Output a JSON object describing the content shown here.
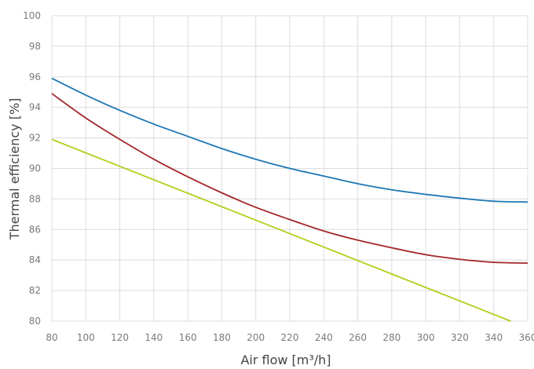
{
  "chart_data": {
    "type": "line",
    "title": "",
    "xlabel": "Air flow [m³/h]",
    "ylabel": "Thermal efficiency [%]",
    "xlim": [
      80,
      360
    ],
    "ylim": [
      80,
      100
    ],
    "x_ticks": [
      80,
      100,
      120,
      140,
      160,
      180,
      200,
      220,
      240,
      260,
      280,
      300,
      320,
      340,
      360
    ],
    "y_ticks": [
      80,
      82,
      84,
      86,
      88,
      90,
      92,
      94,
      96,
      98,
      100
    ],
    "x_tick_labels": [
      "80",
      "100",
      "120",
      "140",
      "160",
      "180",
      "200",
      "220",
      "240",
      "260",
      "280",
      "300",
      "320",
      "340",
      "360"
    ],
    "y_tick_labels": [
      "80",
      "82",
      "84",
      "86",
      "88",
      "90",
      "92",
      "94",
      "96",
      "98",
      "100"
    ],
    "grid": true,
    "legend": "none",
    "series": [
      {
        "color": "#1f77b4",
        "x": [
          80,
          100,
          120,
          140,
          160,
          180,
          200,
          220,
          240,
          260,
          280,
          300,
          320,
          340,
          360
        ],
        "y": [
          95.9,
          94.8,
          93.8,
          92.9,
          92.1,
          91.3,
          90.6,
          90.0,
          89.5,
          89.0,
          88.6,
          88.3,
          88.05,
          87.85,
          87.8
        ]
      },
      {
        "color": "#a3262a",
        "x": [
          80,
          100,
          120,
          140,
          160,
          180,
          200,
          220,
          240,
          260,
          280,
          300,
          320,
          340,
          360
        ],
        "y": [
          94.9,
          93.3,
          91.9,
          90.6,
          89.45,
          88.4,
          87.45,
          86.65,
          85.9,
          85.3,
          84.8,
          84.35,
          84.05,
          83.85,
          83.8
        ]
      },
      {
        "color": "#b5cc1d",
        "x": [
          80,
          350
        ],
        "y": [
          91.9,
          80.0
        ]
      }
    ]
  }
}
